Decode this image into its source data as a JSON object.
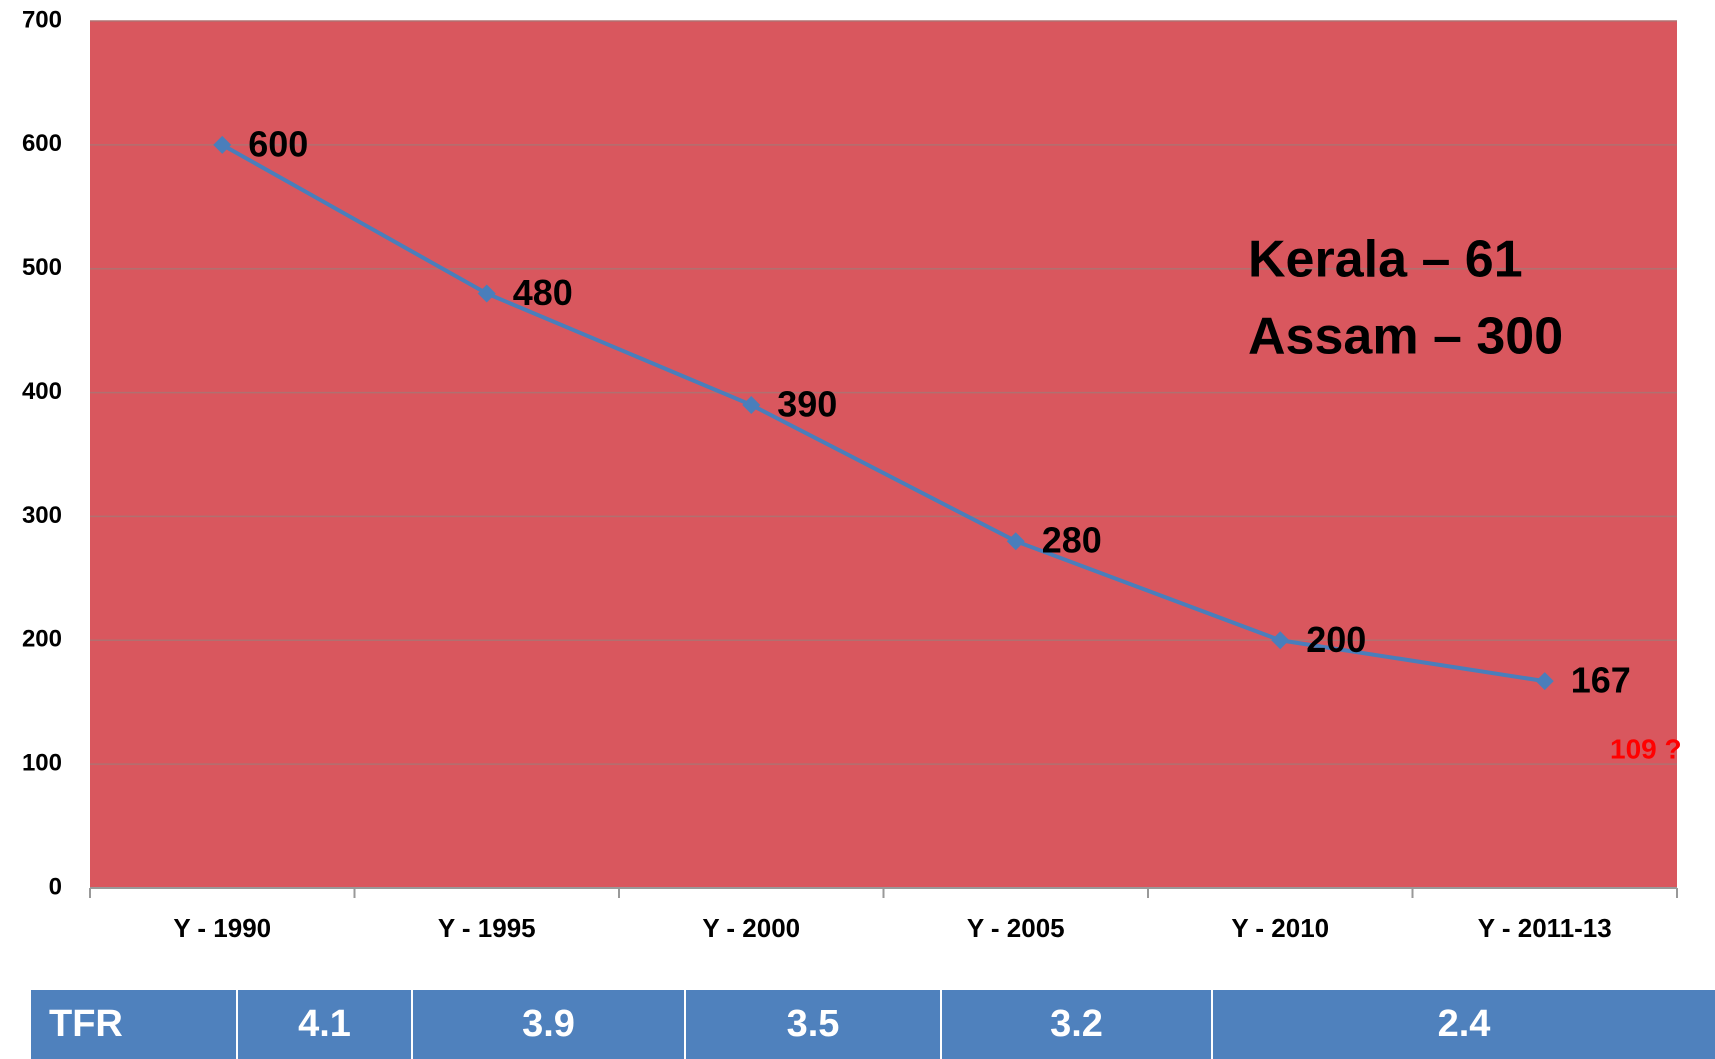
{
  "chart_data": {
    "type": "line",
    "categories": [
      "Y - 1990",
      "Y - 1995",
      "Y - 2000",
      "Y - 2005",
      "Y - 2010",
      "Y - 2011-13"
    ],
    "series": [
      {
        "color": "#4a7ebb",
        "values": [
          600,
          480,
          390,
          280,
          200,
          167
        ]
      }
    ],
    "ylim": [
      0,
      700
    ],
    "yticks": [
      0,
      100,
      200,
      300,
      400,
      500,
      600,
      700
    ],
    "grid": true,
    "background": "#d9575e",
    "annotations": [
      "Kerala – 61",
      "Assam – 300",
      "109 ?"
    ]
  },
  "table": {
    "cells": [
      "TFR",
      4.1,
      3.9,
      3.5,
      3.2,
      2.4
    ]
  }
}
